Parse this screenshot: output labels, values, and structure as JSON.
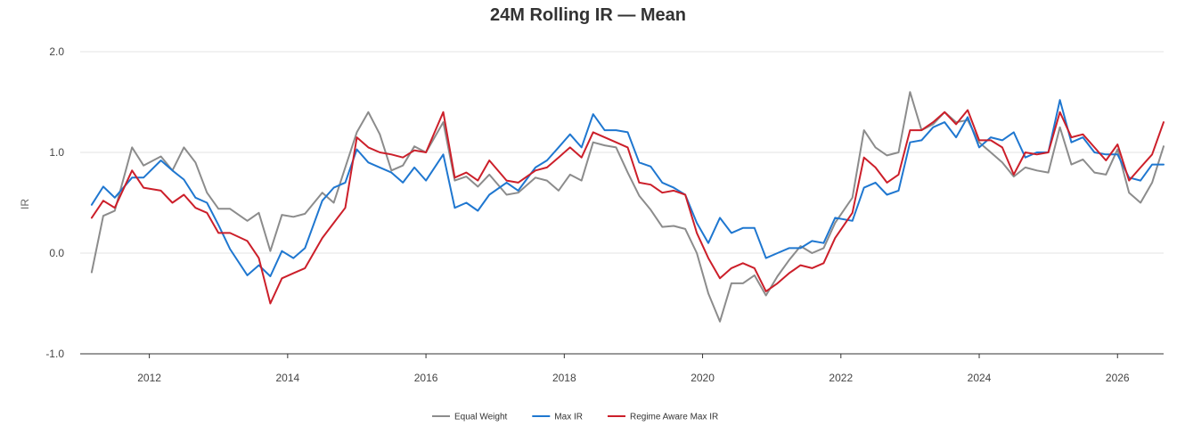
{
  "chart_data": {
    "type": "line",
    "title": "24M Rolling IR — Mean",
    "xlabel": "",
    "ylabel": "IR",
    "ylim": [
      -1.0,
      2.0
    ],
    "xlim": [
      "2011-01",
      "2026-09"
    ],
    "y_ticks": [
      "-1.0",
      "0.0",
      "1.0",
      "2.0"
    ],
    "x_ticks": [
      "2012",
      "2014",
      "2016",
      "2018",
      "2020",
      "2022",
      "2024",
      "2026"
    ],
    "grid": "horizontal",
    "legend": "bottom-center",
    "colors": {
      "Equal Weight": "#8c8c8c",
      "Max IR": "#1f77d0",
      "Regime Aware Max IR": "#cc1f2a"
    },
    "series": [
      {
        "name": "Equal Weight",
        "points": [
          [
            "2011-03",
            -0.19
          ],
          [
            "2011-05",
            0.37
          ],
          [
            "2011-07",
            0.42
          ],
          [
            "2011-10",
            1.05
          ],
          [
            "2011-12",
            0.87
          ],
          [
            "2012-03",
            0.96
          ],
          [
            "2012-05",
            0.82
          ],
          [
            "2012-07",
            1.05
          ],
          [
            "2012-09",
            0.9
          ],
          [
            "2012-11",
            0.6
          ],
          [
            "2013-01",
            0.44
          ],
          [
            "2013-03",
            0.44
          ],
          [
            "2013-06",
            0.32
          ],
          [
            "2013-08",
            0.4
          ],
          [
            "2013-10",
            0.02
          ],
          [
            "2013-12",
            0.38
          ],
          [
            "2014-02",
            0.36
          ],
          [
            "2014-04",
            0.39
          ],
          [
            "2014-07",
            0.6
          ],
          [
            "2014-09",
            0.5
          ],
          [
            "2014-11",
            0.85
          ],
          [
            "2015-01",
            1.2
          ],
          [
            "2015-03",
            1.4
          ],
          [
            "2015-05",
            1.18
          ],
          [
            "2015-07",
            0.82
          ],
          [
            "2015-09",
            0.87
          ],
          [
            "2015-11",
            1.06
          ],
          [
            "2016-01",
            1.0
          ],
          [
            "2016-04",
            1.3
          ],
          [
            "2016-06",
            0.72
          ],
          [
            "2016-08",
            0.76
          ],
          [
            "2016-10",
            0.66
          ],
          [
            "2016-12",
            0.78
          ],
          [
            "2017-03",
            0.58
          ],
          [
            "2017-05",
            0.6
          ],
          [
            "2017-08",
            0.75
          ],
          [
            "2017-10",
            0.72
          ],
          [
            "2017-12",
            0.62
          ],
          [
            "2018-02",
            0.78
          ],
          [
            "2018-04",
            0.72
          ],
          [
            "2018-06",
            1.1
          ],
          [
            "2018-08",
            1.07
          ],
          [
            "2018-10",
            1.05
          ],
          [
            "2018-12",
            0.8
          ],
          [
            "2019-02",
            0.57
          ],
          [
            "2019-04",
            0.43
          ],
          [
            "2019-06",
            0.26
          ],
          [
            "2019-08",
            0.27
          ],
          [
            "2019-10",
            0.24
          ],
          [
            "2019-12",
            0.0
          ],
          [
            "2020-02",
            -0.4
          ],
          [
            "2020-04",
            -0.68
          ],
          [
            "2020-06",
            -0.3
          ],
          [
            "2020-08",
            -0.3
          ],
          [
            "2020-10",
            -0.22
          ],
          [
            "2020-12",
            -0.42
          ],
          [
            "2021-02",
            -0.23
          ],
          [
            "2021-04",
            -0.07
          ],
          [
            "2021-06",
            0.07
          ],
          [
            "2021-08",
            0.0
          ],
          [
            "2021-10",
            0.05
          ],
          [
            "2021-12",
            0.3
          ],
          [
            "2022-03",
            0.55
          ],
          [
            "2022-05",
            1.22
          ],
          [
            "2022-07",
            1.05
          ],
          [
            "2022-09",
            0.97
          ],
          [
            "2022-11",
            1.0
          ],
          [
            "2023-01",
            1.6
          ],
          [
            "2023-03",
            1.22
          ],
          [
            "2023-05",
            1.28
          ],
          [
            "2023-07",
            1.4
          ],
          [
            "2023-09",
            1.3
          ],
          [
            "2023-11",
            1.32
          ],
          [
            "2024-01",
            1.1
          ],
          [
            "2024-03",
            1.0
          ],
          [
            "2024-05",
            0.9
          ],
          [
            "2024-07",
            0.76
          ],
          [
            "2024-09",
            0.85
          ],
          [
            "2024-11",
            0.82
          ],
          [
            "2025-01",
            0.8
          ],
          [
            "2025-03",
            1.25
          ],
          [
            "2025-05",
            0.88
          ],
          [
            "2025-07",
            0.93
          ],
          [
            "2025-09",
            0.8
          ],
          [
            "2025-11",
            0.78
          ],
          [
            "2026-01",
            1.03
          ],
          [
            "2026-03",
            0.6
          ],
          [
            "2026-05",
            0.5
          ],
          [
            "2026-07",
            0.7
          ],
          [
            "2026-09",
            1.06
          ]
        ]
      },
      {
        "name": "Max IR",
        "points": [
          [
            "2011-03",
            0.48
          ],
          [
            "2011-05",
            0.66
          ],
          [
            "2011-07",
            0.55
          ],
          [
            "2011-10",
            0.75
          ],
          [
            "2011-12",
            0.75
          ],
          [
            "2012-03",
            0.92
          ],
          [
            "2012-05",
            0.82
          ],
          [
            "2012-07",
            0.73
          ],
          [
            "2012-09",
            0.55
          ],
          [
            "2012-11",
            0.5
          ],
          [
            "2013-01",
            0.28
          ],
          [
            "2013-03",
            0.04
          ],
          [
            "2013-06",
            -0.22
          ],
          [
            "2013-08",
            -0.12
          ],
          [
            "2013-10",
            -0.23
          ],
          [
            "2013-12",
            0.02
          ],
          [
            "2014-02",
            -0.05
          ],
          [
            "2014-04",
            0.05
          ],
          [
            "2014-07",
            0.52
          ],
          [
            "2014-09",
            0.65
          ],
          [
            "2014-11",
            0.7
          ],
          [
            "2015-01",
            1.03
          ],
          [
            "2015-03",
            0.9
          ],
          [
            "2015-05",
            0.85
          ],
          [
            "2015-07",
            0.8
          ],
          [
            "2015-09",
            0.7
          ],
          [
            "2015-11",
            0.85
          ],
          [
            "2016-01",
            0.72
          ],
          [
            "2016-04",
            0.98
          ],
          [
            "2016-06",
            0.45
          ],
          [
            "2016-08",
            0.5
          ],
          [
            "2016-10",
            0.42
          ],
          [
            "2016-12",
            0.58
          ],
          [
            "2017-03",
            0.7
          ],
          [
            "2017-05",
            0.62
          ],
          [
            "2017-08",
            0.85
          ],
          [
            "2017-10",
            0.92
          ],
          [
            "2017-12",
            1.05
          ],
          [
            "2018-02",
            1.18
          ],
          [
            "2018-04",
            1.05
          ],
          [
            "2018-06",
            1.38
          ],
          [
            "2018-08",
            1.22
          ],
          [
            "2018-10",
            1.22
          ],
          [
            "2018-12",
            1.2
          ],
          [
            "2019-02",
            0.9
          ],
          [
            "2019-04",
            0.86
          ],
          [
            "2019-06",
            0.7
          ],
          [
            "2019-08",
            0.65
          ],
          [
            "2019-10",
            0.58
          ],
          [
            "2019-12",
            0.3
          ],
          [
            "2020-02",
            0.1
          ],
          [
            "2020-04",
            0.35
          ],
          [
            "2020-06",
            0.2
          ],
          [
            "2020-08",
            0.25
          ],
          [
            "2020-10",
            0.25
          ],
          [
            "2020-12",
            -0.05
          ],
          [
            "2021-02",
            0.0
          ],
          [
            "2021-04",
            0.05
          ],
          [
            "2021-06",
            0.05
          ],
          [
            "2021-08",
            0.12
          ],
          [
            "2021-10",
            0.1
          ],
          [
            "2021-12",
            0.35
          ],
          [
            "2022-03",
            0.32
          ],
          [
            "2022-05",
            0.65
          ],
          [
            "2022-07",
            0.7
          ],
          [
            "2022-09",
            0.58
          ],
          [
            "2022-11",
            0.62
          ],
          [
            "2023-01",
            1.1
          ],
          [
            "2023-03",
            1.12
          ],
          [
            "2023-05",
            1.25
          ],
          [
            "2023-07",
            1.3
          ],
          [
            "2023-09",
            1.15
          ],
          [
            "2023-11",
            1.35
          ],
          [
            "2024-01",
            1.05
          ],
          [
            "2024-03",
            1.15
          ],
          [
            "2024-05",
            1.12
          ],
          [
            "2024-07",
            1.2
          ],
          [
            "2024-09",
            0.95
          ],
          [
            "2024-11",
            1.0
          ],
          [
            "2025-01",
            1.0
          ],
          [
            "2025-03",
            1.52
          ],
          [
            "2025-05",
            1.1
          ],
          [
            "2025-07",
            1.15
          ],
          [
            "2025-09",
            1.0
          ],
          [
            "2025-11",
            0.98
          ],
          [
            "2026-01",
            0.98
          ],
          [
            "2026-03",
            0.75
          ],
          [
            "2026-05",
            0.72
          ],
          [
            "2026-07",
            0.88
          ],
          [
            "2026-09",
            0.88
          ]
        ]
      },
      {
        "name": "Regime Aware Max IR",
        "points": [
          [
            "2011-03",
            0.35
          ],
          [
            "2011-05",
            0.52
          ],
          [
            "2011-07",
            0.45
          ],
          [
            "2011-10",
            0.82
          ],
          [
            "2011-12",
            0.65
          ],
          [
            "2012-03",
            0.62
          ],
          [
            "2012-05",
            0.5
          ],
          [
            "2012-07",
            0.58
          ],
          [
            "2012-09",
            0.45
          ],
          [
            "2012-11",
            0.4
          ],
          [
            "2013-01",
            0.2
          ],
          [
            "2013-03",
            0.2
          ],
          [
            "2013-06",
            0.12
          ],
          [
            "2013-08",
            -0.05
          ],
          [
            "2013-10",
            -0.5
          ],
          [
            "2013-12",
            -0.25
          ],
          [
            "2014-02",
            -0.2
          ],
          [
            "2014-04",
            -0.15
          ],
          [
            "2014-07",
            0.15
          ],
          [
            "2014-09",
            0.3
          ],
          [
            "2014-11",
            0.45
          ],
          [
            "2015-01",
            1.15
          ],
          [
            "2015-03",
            1.05
          ],
          [
            "2015-05",
            1.0
          ],
          [
            "2015-07",
            0.98
          ],
          [
            "2015-09",
            0.95
          ],
          [
            "2015-11",
            1.02
          ],
          [
            "2016-01",
            1.0
          ],
          [
            "2016-04",
            1.4
          ],
          [
            "2016-06",
            0.75
          ],
          [
            "2016-08",
            0.8
          ],
          [
            "2016-10",
            0.72
          ],
          [
            "2016-12",
            0.92
          ],
          [
            "2017-03",
            0.72
          ],
          [
            "2017-05",
            0.7
          ],
          [
            "2017-08",
            0.82
          ],
          [
            "2017-10",
            0.85
          ],
          [
            "2017-12",
            0.95
          ],
          [
            "2018-02",
            1.05
          ],
          [
            "2018-04",
            0.95
          ],
          [
            "2018-06",
            1.2
          ],
          [
            "2018-08",
            1.15
          ],
          [
            "2018-10",
            1.1
          ],
          [
            "2018-12",
            1.05
          ],
          [
            "2019-02",
            0.7
          ],
          [
            "2019-04",
            0.68
          ],
          [
            "2019-06",
            0.6
          ],
          [
            "2019-08",
            0.62
          ],
          [
            "2019-10",
            0.58
          ],
          [
            "2019-12",
            0.2
          ],
          [
            "2020-02",
            -0.05
          ],
          [
            "2020-04",
            -0.25
          ],
          [
            "2020-06",
            -0.15
          ],
          [
            "2020-08",
            -0.1
          ],
          [
            "2020-10",
            -0.15
          ],
          [
            "2020-12",
            -0.38
          ],
          [
            "2021-02",
            -0.3
          ],
          [
            "2021-04",
            -0.2
          ],
          [
            "2021-06",
            -0.12
          ],
          [
            "2021-08",
            -0.15
          ],
          [
            "2021-10",
            -0.1
          ],
          [
            "2021-12",
            0.15
          ],
          [
            "2022-03",
            0.4
          ],
          [
            "2022-05",
            0.95
          ],
          [
            "2022-07",
            0.85
          ],
          [
            "2022-09",
            0.7
          ],
          [
            "2022-11",
            0.78
          ],
          [
            "2023-01",
            1.22
          ],
          [
            "2023-03",
            1.22
          ],
          [
            "2023-05",
            1.3
          ],
          [
            "2023-07",
            1.4
          ],
          [
            "2023-09",
            1.28
          ],
          [
            "2023-11",
            1.42
          ],
          [
            "2024-01",
            1.12
          ],
          [
            "2024-03",
            1.12
          ],
          [
            "2024-05",
            1.05
          ],
          [
            "2024-07",
            0.78
          ],
          [
            "2024-09",
            1.0
          ],
          [
            "2024-11",
            0.98
          ],
          [
            "2025-01",
            1.0
          ],
          [
            "2025-03",
            1.4
          ],
          [
            "2025-05",
            1.15
          ],
          [
            "2025-07",
            1.18
          ],
          [
            "2025-09",
            1.05
          ],
          [
            "2025-11",
            0.92
          ],
          [
            "2026-01",
            1.08
          ],
          [
            "2026-03",
            0.72
          ],
          [
            "2026-05",
            0.85
          ],
          [
            "2026-07",
            0.98
          ],
          [
            "2026-09",
            1.3
          ]
        ]
      }
    ]
  }
}
